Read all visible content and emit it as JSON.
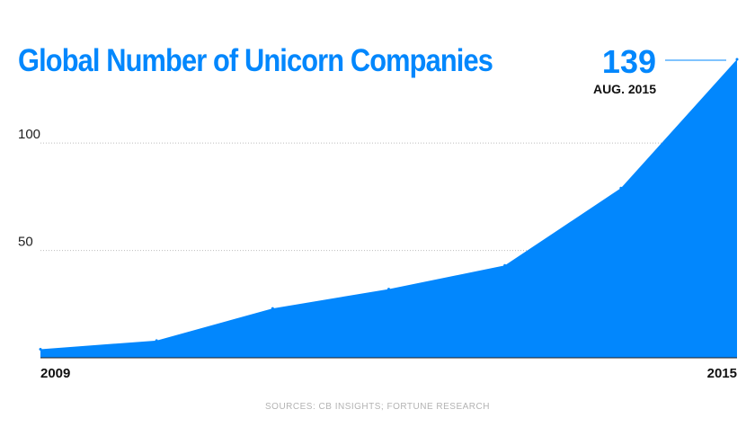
{
  "chart_data": {
    "type": "area",
    "title": "Global Number of Unicorn Companies",
    "x": [
      2009,
      2010,
      2011,
      2012,
      2013,
      2014,
      2015
    ],
    "x_tick_labels": [
      "2009",
      "2015"
    ],
    "values": [
      4,
      8,
      23,
      32,
      43,
      79,
      139
    ],
    "ylim": [
      0,
      139
    ],
    "y_ticks": [
      50,
      100
    ],
    "y_tick_labels": [
      "50",
      "100"
    ],
    "grid": "horizontal dotted",
    "annotation": {
      "value": "139",
      "label": "AUG. 2015"
    },
    "source": "SOURCES: CB INSIGHTS; FORTUNE RESEARCH",
    "color": "#0287fd"
  }
}
